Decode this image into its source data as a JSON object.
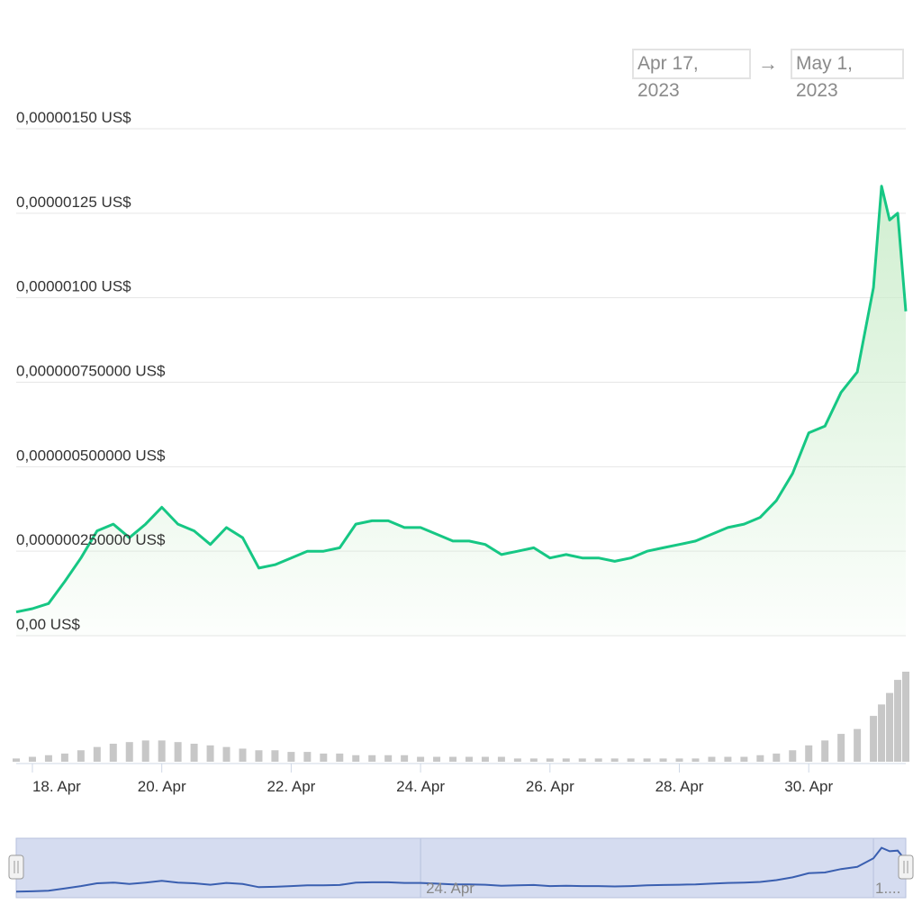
{
  "range": {
    "start": "Apr 17, 2023",
    "arrow": "→",
    "end": "May 1, 2023"
  },
  "chart_data": {
    "type": "area",
    "title": "",
    "xlabel": "",
    "ylabel": "",
    "ylim": [
      0,
      1.5e-06
    ],
    "yticks": [
      "0,00000150 US$",
      "0,00000125 US$",
      "0,00000100 US$",
      "0,000000750000 US$",
      "0,000000500000 US$",
      "0,000000250000 US$",
      "0,00 US$"
    ],
    "xticks": [
      "18. Apr",
      "20. Apr",
      "22. Apr",
      "24. Apr",
      "26. Apr",
      "28. Apr",
      "30. Apr"
    ],
    "navigator_label": "24. Apr",
    "navigator_end_label": "1....",
    "grid": true,
    "colors": {
      "line": "#16c784",
      "area_top": "#c8ecc8",
      "volume": "#c7c7c7",
      "navigator_line": "#3a5fb0",
      "navigator_fill": "#d5dcf0"
    },
    "series": [
      {
        "x": [
          "Apr 17 18:00",
          "Apr 18 00:00",
          "Apr 18 06:00",
          "Apr 18 12:00",
          "Apr 18 18:00",
          "Apr 19 00:00",
          "Apr 19 06:00",
          "Apr 19 12:00",
          "Apr 19 18:00",
          "Apr 20 00:00",
          "Apr 20 06:00",
          "Apr 20 12:00",
          "Apr 20 18:00",
          "Apr 21 00:00",
          "Apr 21 06:00",
          "Apr 21 12:00",
          "Apr 21 18:00",
          "Apr 22 00:00",
          "Apr 22 06:00",
          "Apr 22 12:00",
          "Apr 22 18:00",
          "Apr 23 00:00",
          "Apr 23 06:00",
          "Apr 23 12:00",
          "Apr 23 18:00",
          "Apr 24 00:00",
          "Apr 24 06:00",
          "Apr 24 12:00",
          "Apr 24 18:00",
          "Apr 25 00:00",
          "Apr 25 06:00",
          "Apr 25 12:00",
          "Apr 25 18:00",
          "Apr 26 00:00",
          "Apr 26 06:00",
          "Apr 26 12:00",
          "Apr 26 18:00",
          "Apr 27 00:00",
          "Apr 27 06:00",
          "Apr 27 12:00",
          "Apr 27 18:00",
          "Apr 28 00:00",
          "Apr 28 06:00",
          "Apr 28 12:00",
          "Apr 28 18:00",
          "Apr 29 00:00",
          "Apr 29 06:00",
          "Apr 29 12:00",
          "Apr 29 18:00",
          "Apr 30 00:00",
          "Apr 30 06:00",
          "Apr 30 12:00",
          "Apr 30 18:00",
          "May 1 00:00",
          "May 1 03:00",
          "May 1 06:00",
          "May 1 09:00",
          "May 1 12:00"
        ],
        "values": [
          7e-08,
          8e-08,
          9.5e-08,
          1.6e-07,
          2.3e-07,
          3.1e-07,
          3.3e-07,
          2.9e-07,
          3.3e-07,
          3.8e-07,
          3.3e-07,
          3.1e-07,
          2.7e-07,
          3.2e-07,
          2.9e-07,
          2e-07,
          2.1e-07,
          2.3e-07,
          2.5e-07,
          2.5e-07,
          2.6e-07,
          3.3e-07,
          3.4e-07,
          3.4e-07,
          3.2e-07,
          3.2e-07,
          3e-07,
          2.8e-07,
          2.8e-07,
          2.7e-07,
          2.4e-07,
          2.5e-07,
          2.6e-07,
          2.3e-07,
          2.4e-07,
          2.3e-07,
          2.3e-07,
          2.2e-07,
          2.3e-07,
          2.5e-07,
          2.6e-07,
          2.7e-07,
          2.8e-07,
          3e-07,
          3.2e-07,
          3.3e-07,
          3.5e-07,
          4e-07,
          4.8e-07,
          6e-07,
          6.2e-07,
          7.2e-07,
          7.8e-07,
          1.03e-06,
          1.33e-06,
          1.23e-06,
          1.25e-06,
          9.6e-07
        ]
      }
    ],
    "volume": [
      2,
      3,
      4,
      5,
      7,
      9,
      11,
      12,
      13,
      13,
      12,
      11,
      10,
      9,
      8,
      7,
      7,
      6,
      6,
      5,
      5,
      4,
      4,
      4,
      4,
      3,
      3,
      3,
      3,
      3,
      3,
      2,
      2,
      2,
      2,
      2,
      2,
      2,
      2,
      2,
      2,
      2,
      2,
      3,
      3,
      3,
      4,
      5,
      7,
      10,
      13,
      17,
      20,
      28,
      35,
      42,
      50,
      55
    ]
  }
}
